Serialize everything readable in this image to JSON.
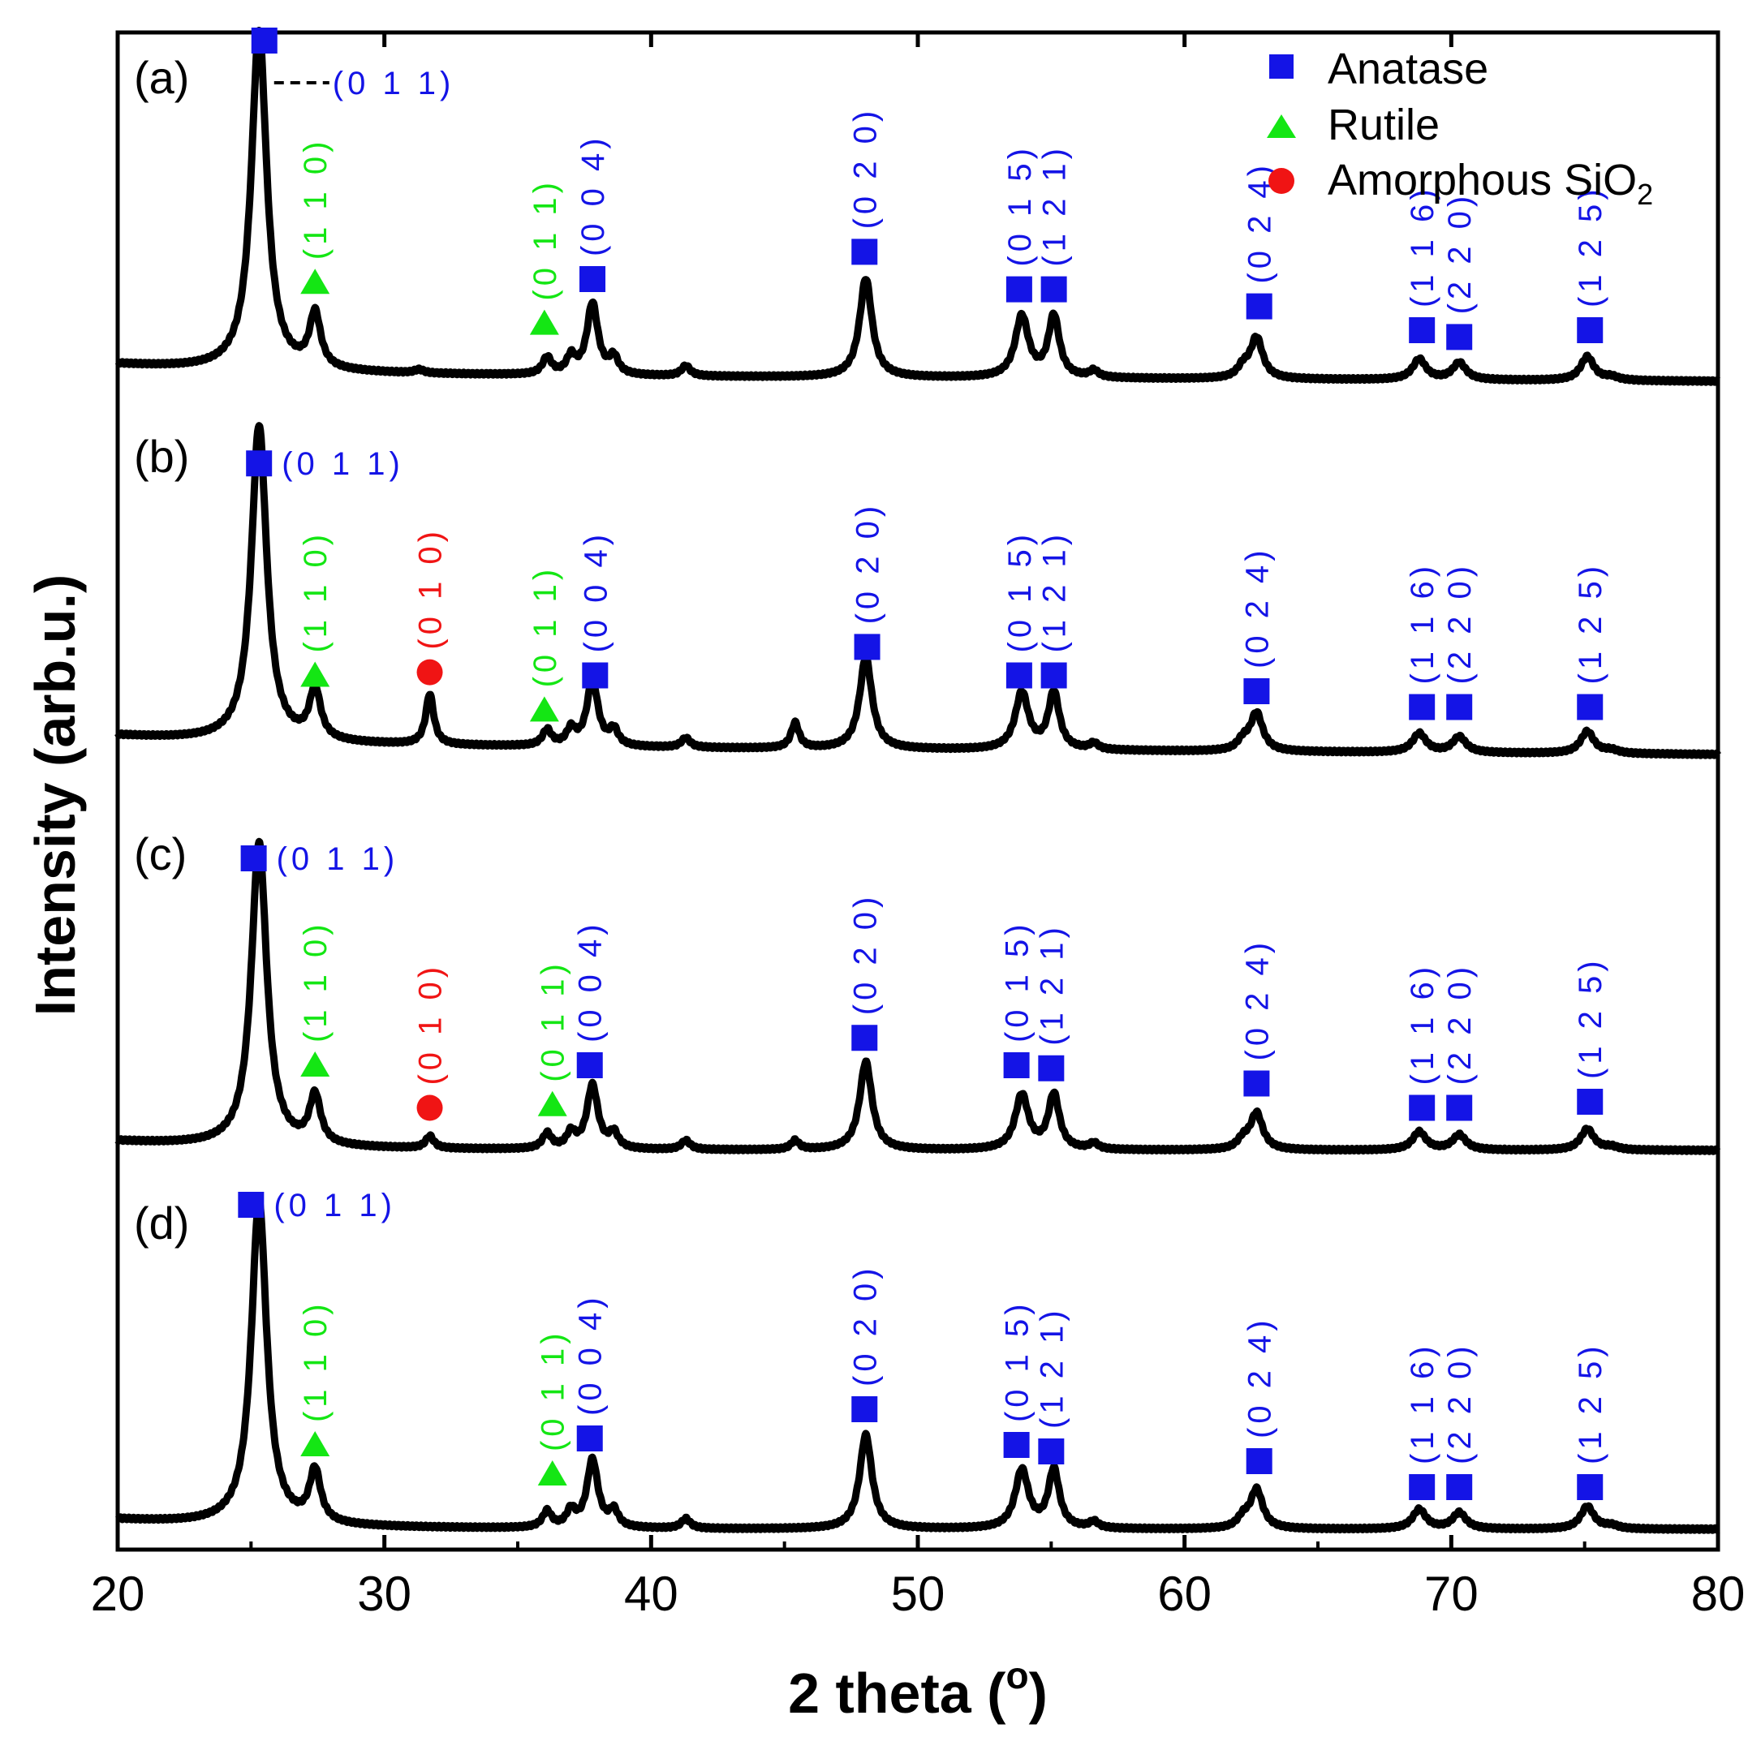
{
  "chart_data": {
    "type": "line",
    "title": "",
    "xlabel": "2 theta (",
    "xlabel_sup": "o",
    "xlabel_end": ")",
    "ylabel": "Intensity (arb.u.)",
    "xlim": [
      20,
      80
    ],
    "xticks": [
      "20",
      "30",
      "40",
      "50",
      "60",
      "70",
      "80"
    ],
    "colors": {
      "anatase": "#1414e6",
      "rutile": "#14e614",
      "sio2": "#f01414",
      "line": "#000000"
    },
    "legend": {
      "position": "top-right",
      "items": [
        {
          "name": "Anatase",
          "marker": "square",
          "color": "#1414e6"
        },
        {
          "name": "Rutile",
          "marker": "triangle",
          "color": "#14e614"
        },
        {
          "name": "Amorphous SiO",
          "subscript": "2",
          "marker": "circle",
          "color": "#f01414"
        }
      ]
    },
    "peak_list": [
      {
        "x": 25.3,
        "h": 1.0,
        "w": 0.35
      },
      {
        "x": 27.4,
        "h": 0.16,
        "w": 0.25
      },
      {
        "x": 36.1,
        "h": 0.05,
        "w": 0.2
      },
      {
        "x": 37.0,
        "h": 0.05,
        "w": 0.2
      },
      {
        "x": 37.8,
        "h": 0.21,
        "w": 0.25
      },
      {
        "x": 38.6,
        "h": 0.05,
        "w": 0.2
      },
      {
        "x": 41.3,
        "h": 0.03,
        "w": 0.2
      },
      {
        "x": 48.05,
        "h": 0.29,
        "w": 0.28
      },
      {
        "x": 53.9,
        "h": 0.18,
        "w": 0.3
      },
      {
        "x": 55.1,
        "h": 0.18,
        "w": 0.25
      },
      {
        "x": 56.6,
        "h": 0.02,
        "w": 0.2
      },
      {
        "x": 62.2,
        "h": 0.03,
        "w": 0.25
      },
      {
        "x": 62.7,
        "h": 0.12,
        "w": 0.28
      },
      {
        "x": 68.8,
        "h": 0.06,
        "w": 0.3
      },
      {
        "x": 70.3,
        "h": 0.05,
        "w": 0.3
      },
      {
        "x": 75.1,
        "h": 0.07,
        "w": 0.3
      },
      {
        "x": 76.0,
        "h": 0.01,
        "w": 0.3
      }
    ],
    "series": [
      {
        "name": "(a)",
        "baseline": 0.02,
        "extra_peaks": [
          {
            "x": 31.3,
            "h": 0.01,
            "w": 0.2
          }
        ],
        "annotations": [
          {
            "x": 25.5,
            "marker": "square",
            "color": "#1414e6",
            "label": "(0 1 1)",
            "orient": "horizontal-leader",
            "y": 1.0
          },
          {
            "x": 27.4,
            "marker": "triangle",
            "color": "#14e614",
            "label": "(1 1 0)",
            "y": 0.29
          },
          {
            "x": 36.0,
            "marker": "triangle",
            "color": "#14e614",
            "label": "(0 1 1)",
            "y": 0.17
          },
          {
            "x": 37.8,
            "marker": "square",
            "color": "#1414e6",
            "label": "(0 0 4)",
            "y": 0.3
          },
          {
            "x": 48.0,
            "marker": "square",
            "color": "#1414e6",
            "label": "(0 2 0)",
            "y": 0.38
          },
          {
            "x": 53.8,
            "marker": "square",
            "color": "#1414e6",
            "label": "(0 1 5)",
            "y": 0.27
          },
          {
            "x": 55.1,
            "marker": "square",
            "color": "#1414e6",
            "label": "(1 2 1)",
            "y": 0.27
          },
          {
            "x": 62.8,
            "marker": "square",
            "color": "#1414e6",
            "label": "(0 2 4)",
            "y": 0.22
          },
          {
            "x": 68.9,
            "marker": "square",
            "color": "#1414e6",
            "label": "(1 1 6)",
            "y": 0.15
          },
          {
            "x": 70.3,
            "marker": "square",
            "color": "#1414e6",
            "label": "(2 2 0)",
            "y": 0.13
          },
          {
            "x": 75.2,
            "marker": "square",
            "color": "#1414e6",
            "label": "(1 2 5)",
            "y": 0.15
          }
        ]
      },
      {
        "name": "(b)",
        "baseline": 0.03,
        "extra_peaks": [
          {
            "x": 31.7,
            "h": 0.16,
            "w": 0.18
          },
          {
            "x": 45.4,
            "h": 0.08,
            "w": 0.18
          }
        ],
        "annotations": [
          {
            "x": 25.3,
            "marker": "square",
            "color": "#1414e6",
            "label": "(0 1 1)",
            "orient": "horizontal",
            "y": 0.92
          },
          {
            "x": 27.4,
            "marker": "triangle",
            "color": "#14e614",
            "label": "(1 1 0)",
            "y": 0.25
          },
          {
            "x": 31.7,
            "marker": "circle",
            "color": "#f01414",
            "label": "(0 1 0)",
            "y": 0.26
          },
          {
            "x": 36.0,
            "marker": "triangle",
            "color": "#14e614",
            "label": "(0 1 1)",
            "y": 0.14
          },
          {
            "x": 37.9,
            "marker": "square",
            "color": "#1414e6",
            "label": "(0 0 4)",
            "y": 0.25
          },
          {
            "x": 48.1,
            "marker": "square",
            "color": "#1414e6",
            "label": "(0 2 0)",
            "y": 0.34
          },
          {
            "x": 53.8,
            "marker": "square",
            "color": "#1414e6",
            "label": "(0 1 5)",
            "y": 0.25
          },
          {
            "x": 55.1,
            "marker": "square",
            "color": "#1414e6",
            "label": "(1 2 1)",
            "y": 0.25
          },
          {
            "x": 62.7,
            "marker": "square",
            "color": "#1414e6",
            "label": "(0 2 4)",
            "y": 0.2
          },
          {
            "x": 68.9,
            "marker": "square",
            "color": "#1414e6",
            "label": "(1 1 6)",
            "y": 0.15
          },
          {
            "x": 70.3,
            "marker": "square",
            "color": "#1414e6",
            "label": "(2 2 0)",
            "y": 0.15
          },
          {
            "x": 75.2,
            "marker": "square",
            "color": "#1414e6",
            "label": "(1 2 5)",
            "y": 0.15
          }
        ]
      },
      {
        "name": "(c)",
        "baseline": 0.0,
        "extra_peaks": [
          {
            "x": 31.7,
            "h": 0.04,
            "w": 0.18
          },
          {
            "x": 45.4,
            "h": 0.03,
            "w": 0.18
          }
        ],
        "annotations": [
          {
            "x": 25.1,
            "marker": "square",
            "color": "#1414e6",
            "label": "(0 1 1)",
            "orient": "horizontal",
            "y": 0.96
          },
          {
            "x": 27.4,
            "marker": "triangle",
            "color": "#14e614",
            "label": "(1 1 0)",
            "y": 0.28
          },
          {
            "x": 31.7,
            "marker": "circle",
            "color": "#f01414",
            "label": "(0 1 0)",
            "y": 0.14
          },
          {
            "x": 36.3,
            "marker": "triangle",
            "color": "#14e614",
            "label": "(0 1 1)",
            "y": 0.15
          },
          {
            "x": 37.7,
            "marker": "square",
            "color": "#1414e6",
            "label": "(0 0 4)",
            "y": 0.28
          },
          {
            "x": 48.0,
            "marker": "square",
            "color": "#1414e6",
            "label": "(0 2 0)",
            "y": 0.37
          },
          {
            "x": 53.7,
            "marker": "square",
            "color": "#1414e6",
            "label": "(0 1 5)",
            "y": 0.28
          },
          {
            "x": 55.0,
            "marker": "square",
            "color": "#1414e6",
            "label": "(1 2 1)",
            "y": 0.27
          },
          {
            "x": 62.7,
            "marker": "square",
            "color": "#1414e6",
            "label": "(0 2 4)",
            "y": 0.22
          },
          {
            "x": 68.9,
            "marker": "square",
            "color": "#1414e6",
            "label": "(1 1 6)",
            "y": 0.14
          },
          {
            "x": 70.3,
            "marker": "square",
            "color": "#1414e6",
            "label": "(2 2 0)",
            "y": 0.14
          },
          {
            "x": 75.2,
            "marker": "square",
            "color": "#1414e6",
            "label": "(1 2 5)",
            "y": 0.16
          }
        ]
      },
      {
        "name": "(d)",
        "baseline": 0.0,
        "extra_peaks": [],
        "annotations": [
          {
            "x": 25.0,
            "marker": "square",
            "color": "#1414e6",
            "label": "(0 1 1)",
            "orient": "horizontal",
            "y": 1.0
          },
          {
            "x": 27.4,
            "marker": "triangle",
            "color": "#14e614",
            "label": "(1 1 0)",
            "y": 0.26
          },
          {
            "x": 36.3,
            "marker": "triangle",
            "color": "#14e614",
            "label": "(0 1 1)",
            "y": 0.17
          },
          {
            "x": 37.7,
            "marker": "square",
            "color": "#1414e6",
            "label": "(0 0 4)",
            "y": 0.28
          },
          {
            "x": 48.0,
            "marker": "square",
            "color": "#1414e6",
            "label": "(0 2 0)",
            "y": 0.37
          },
          {
            "x": 53.7,
            "marker": "square",
            "color": "#1414e6",
            "label": "(0 1 5)",
            "y": 0.26
          },
          {
            "x": 55.0,
            "marker": "square",
            "color": "#1414e6",
            "label": "(1 2 1)",
            "y": 0.24
          },
          {
            "x": 62.8,
            "marker": "square",
            "color": "#1414e6",
            "label": "(0 2 4)",
            "y": 0.21
          },
          {
            "x": 68.9,
            "marker": "square",
            "color": "#1414e6",
            "label": "(1 1 6)",
            "y": 0.13
          },
          {
            "x": 70.3,
            "marker": "square",
            "color": "#1414e6",
            "label": "(2 2 0)",
            "y": 0.13
          },
          {
            "x": 75.2,
            "marker": "square",
            "color": "#1414e6",
            "label": "(1 2 5)",
            "y": 0.13
          }
        ]
      }
    ]
  }
}
